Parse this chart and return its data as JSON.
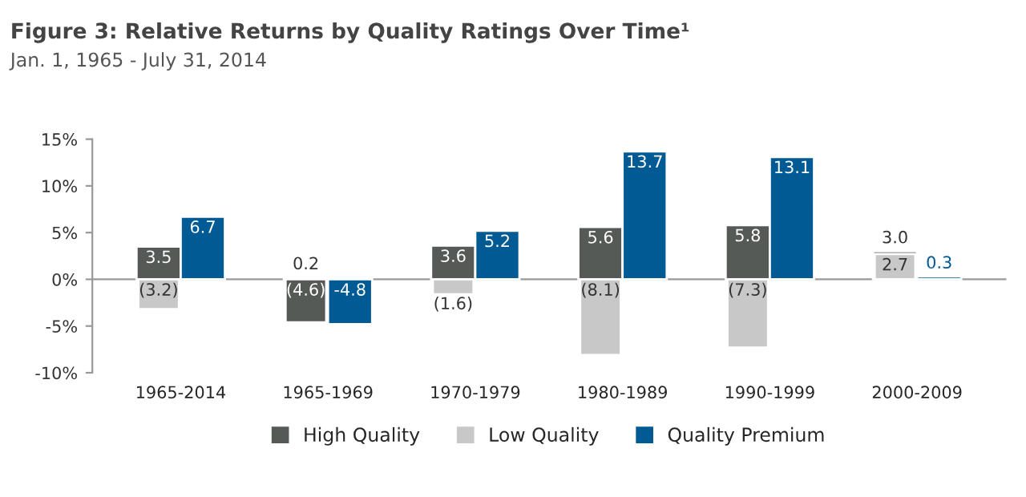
{
  "chart_data": {
    "type": "bar",
    "title": "Figure 3: Relative Returns by Quality Ratings Over Time¹",
    "subtitle": "Jan. 1, 1965 - July 31, 2014",
    "categories": [
      "1965-2014",
      "1965-1969",
      "1970-1979",
      "1980-1989",
      "1990-1999",
      "2000-2009"
    ],
    "series": [
      {
        "name": "High Quality",
        "color": "#555a57",
        "values": [
          3.5,
          0.2,
          3.6,
          5.6,
          5.8,
          3.0
        ],
        "value_labels": [
          "3.5",
          "0.2",
          "3.6",
          "5.6",
          "5.8",
          "3.0"
        ]
      },
      {
        "name": "Low Quality",
        "color": "#c8c8c8",
        "colors": [
          "#c8c8c8",
          "#555a57",
          "#c8c8c8",
          "#c8c8c8",
          "#c8c8c8",
          "#c8c8c8"
        ],
        "values": [
          -3.2,
          -4.6,
          -1.6,
          -8.1,
          -7.3,
          2.7
        ],
        "value_labels": [
          "(3.2)",
          "(4.6)",
          "(1.6)",
          "(8.1)",
          "(7.3)",
          "2.7"
        ]
      },
      {
        "name": "Quality Premium",
        "color": "#005b94",
        "values": [
          6.7,
          -4.8,
          5.2,
          13.7,
          13.1,
          0.3
        ],
        "value_labels": [
          "6.7",
          "-4.8",
          "5.2",
          "13.7",
          "13.1",
          "0.3"
        ]
      }
    ],
    "ylim": [
      -10,
      15
    ],
    "yticks": [
      {
        "value": -10,
        "label": "-10%"
      },
      {
        "value": -5,
        "label": "-5%"
      },
      {
        "value": 0,
        "label": "0%"
      },
      {
        "value": 5,
        "label": "5%"
      },
      {
        "value": 10,
        "label": "10%"
      },
      {
        "value": 15,
        "label": "15%"
      }
    ],
    "legend": "bottom"
  }
}
